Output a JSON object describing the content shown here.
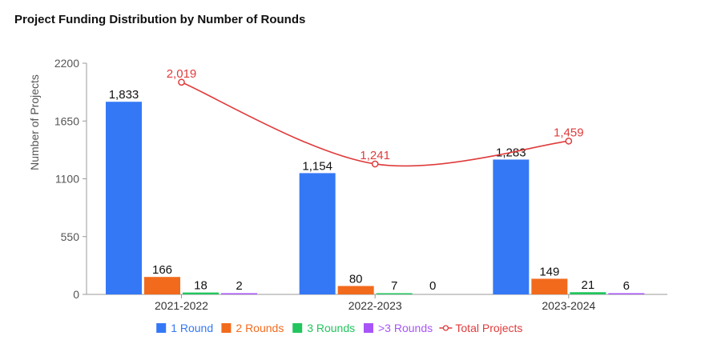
{
  "chart_data": {
    "type": "bar",
    "title": "Project Funding Distribution by Number of Rounds",
    "xlabel": "",
    "ylabel": "Number of Projects",
    "ylim": [
      0,
      2200
    ],
    "yticks": [
      0,
      550,
      1100,
      1650,
      2200
    ],
    "categories": [
      "2021-2022",
      "2022-2023",
      "2023-2024"
    ],
    "series": [
      {
        "name": "1 Round",
        "color": "#3478f6",
        "values": [
          1833,
          1154,
          1283
        ],
        "labels": [
          "1,833",
          "1,154",
          "1,283"
        ]
      },
      {
        "name": "2 Rounds",
        "color": "#f26b1d",
        "values": [
          166,
          80,
          149
        ],
        "labels": [
          "166",
          "80",
          "149"
        ]
      },
      {
        "name": "3 Rounds",
        "color": "#22c55e",
        "values": [
          18,
          7,
          21
        ],
        "labels": [
          "18",
          "7",
          "21"
        ]
      },
      {
        "name": ">3 Rounds",
        "color": "#a855f7",
        "values": [
          2,
          0,
          6
        ],
        "labels": [
          "2",
          "0",
          "6"
        ]
      }
    ],
    "line_series": {
      "name": "Total Projects",
      "color": "#e03b3b",
      "values": [
        2019,
        1241,
        1459
      ],
      "labels": [
        "2,019",
        "1,241",
        "1,459"
      ]
    },
    "grid": false,
    "legend_position": "bottom"
  }
}
